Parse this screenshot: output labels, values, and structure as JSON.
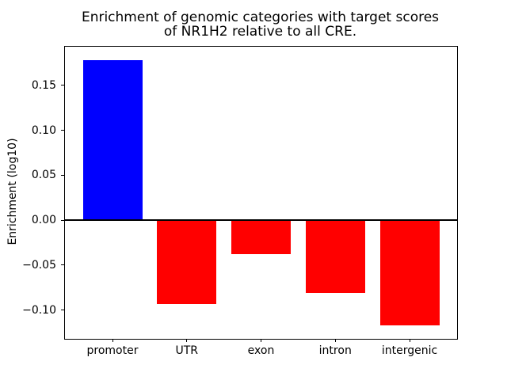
{
  "figure": {
    "title_line1": "Enrichment of genomic categories with target scores",
    "title_line2": "of NR1H2 relative to all CRE.",
    "ylabel": "Enrichment (log10)"
  },
  "chart_data": {
    "type": "bar",
    "title": "Enrichment of genomic categories with target scores of NR1H2 relative to all CRE.",
    "xlabel": "",
    "ylabel": "Enrichment (log10)",
    "categories": [
      "promoter",
      "UTR",
      "exon",
      "intron",
      "intergenic"
    ],
    "values": [
      0.178,
      -0.093,
      -0.038,
      -0.081,
      -0.117
    ],
    "bar_colors": [
      "#0000ff",
      "#ff0000",
      "#ff0000",
      "#ff0000",
      "#ff0000"
    ],
    "positive_color": "#0000ff",
    "negative_color": "#ff0000",
    "ylim": [
      -0.132,
      0.193
    ],
    "yticks": [
      0.15,
      0.1,
      0.05,
      0.0,
      -0.05,
      -0.1
    ],
    "ytick_labels": [
      "0.15",
      "0.10",
      "0.05",
      "0.00",
      "−0.05",
      "−0.10"
    ],
    "zero_line": true,
    "grid": false,
    "legend_position": "none",
    "bar_width_fraction": 0.8
  }
}
